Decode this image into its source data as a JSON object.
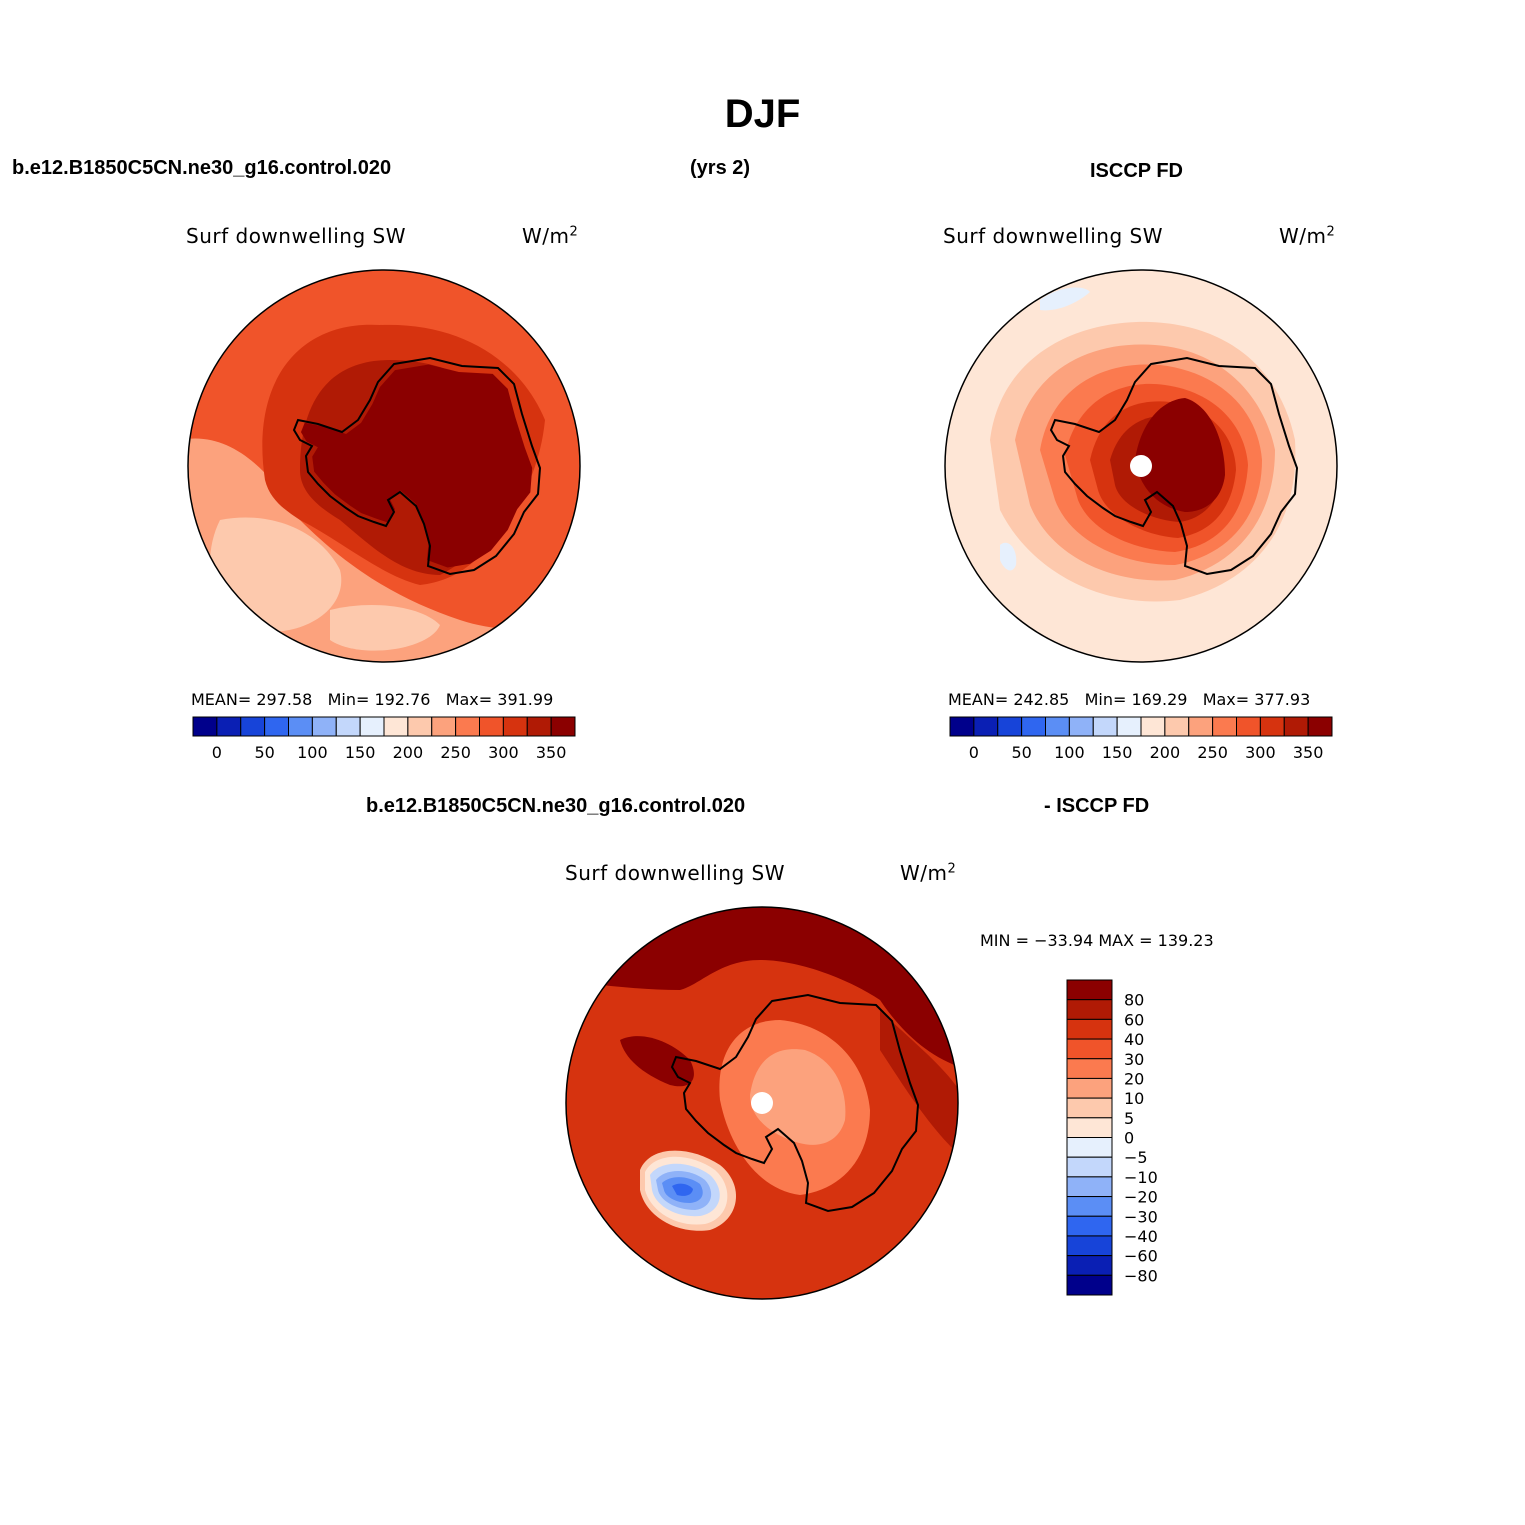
{
  "figure": {
    "season": "DJF",
    "case_name": "b.e12.B1850C5CN.ne30_g16.control.020",
    "years": "(yrs 2)",
    "obs_name": "ISCCP FD",
    "diff_case_name": "b.e12.B1850C5CN.ne30_g16.control.020",
    "diff_obs_name": "- ISCCP FD"
  },
  "panels": {
    "model": {
      "title": "Surf downwelling SW",
      "units": "W/m",
      "units_sup": "2",
      "stats": "MEAN= 297.58   Min= 192.76   Max= 391.99",
      "mean": 297.58,
      "min": 192.76,
      "max": 391.99
    },
    "obs": {
      "title": "Surf downwelling SW",
      "units": "W/m",
      "units_sup": "2",
      "stats": "MEAN= 242.85   Min= 169.29   Max= 377.93",
      "mean": 242.85,
      "min": 169.29,
      "max": 377.93
    },
    "diff": {
      "title": "Surf downwelling SW",
      "units": "W/m",
      "units_sup": "2",
      "stats": "MIN = −33.94 MAX = 139.23",
      "min": -33.94,
      "max": 139.23
    }
  },
  "colorbars": {
    "horizontal": {
      "colors": [
        "#00008b",
        "#0a1fb4",
        "#1744d9",
        "#2f66f0",
        "#5b8ef5",
        "#8fb2f8",
        "#c3d7fb",
        "#e6f0fd",
        "#fee6d6",
        "#fdc9ad",
        "#fca27d",
        "#fb7a4f",
        "#f0542a",
        "#d6330f",
        "#b01a05",
        "#8b0000"
      ],
      "labels": [
        "0",
        "50",
        "100",
        "150",
        "200",
        "250",
        "300",
        "350"
      ]
    },
    "vertical": {
      "colors": [
        "#8b0000",
        "#b01a05",
        "#d6330f",
        "#f0542a",
        "#fb7a4f",
        "#fca27d",
        "#fdc9ad",
        "#fee6d6",
        "#e6f0fd",
        "#c3d7fb",
        "#8fb2f8",
        "#5b8ef5",
        "#2f66f0",
        "#1744d9",
        "#0a1fb4",
        "#00008b"
      ],
      "labels": [
        "80",
        "60",
        "40",
        "30",
        "20",
        "10",
        "5",
        "0",
        "−5",
        "−10",
        "−20",
        "−30",
        "−40",
        "−60",
        "−80"
      ]
    }
  },
  "map_colors": {
    "darkest": "#8b0000",
    "dark": "#b01a05",
    "red": "#d6330f",
    "orange": "#f0542a",
    "light_orange": "#fb7a4f",
    "salmon": "#fca27d",
    "peach": "#fdc9ad",
    "cream": "#fee6d6",
    "pale_blue": "#e6f0fd",
    "light_blue": "#c3d7fb",
    "mid_blue": "#8fb2f8",
    "blue": "#5b8ef5",
    "deep_blue": "#2f66f0"
  }
}
